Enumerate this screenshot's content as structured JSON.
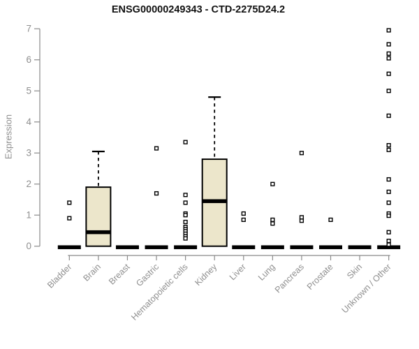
{
  "chart_data": {
    "type": "boxplot",
    "title": "ENSG00000249343 - CTD-2275D24.2",
    "ylabel": "Expression",
    "xlabel": "",
    "ylim": [
      0,
      7
    ],
    "yticks": [
      0,
      1,
      2,
      3,
      4,
      5,
      6,
      7
    ],
    "grid": "off",
    "legend": "none",
    "categories": [
      "Bladder",
      "Brain",
      "Breast",
      "Gastric",
      "Hematopoietic cells",
      "Kidney",
      "Liver",
      "Lung",
      "Pancreas",
      "Prostate",
      "Skin",
      "Unknown / Other"
    ],
    "series": [
      {
        "category": "Bladder",
        "q1": 0,
        "median": 0,
        "q3": 0,
        "whisker_low": 0,
        "whisker_high": 0,
        "outliers": [
          1.4,
          0.9
        ]
      },
      {
        "category": "Brain",
        "q1": 0,
        "median": 0.45,
        "q3": 1.9,
        "whisker_low": 0,
        "whisker_high": 3.05,
        "outliers": []
      },
      {
        "category": "Breast",
        "q1": 0,
        "median": 0,
        "q3": 0,
        "whisker_low": 0,
        "whisker_high": 0,
        "outliers": []
      },
      {
        "category": "Gastric",
        "q1": 0,
        "median": 0,
        "q3": 0,
        "whisker_low": 0,
        "whisker_high": 0,
        "outliers": [
          3.15,
          1.7
        ]
      },
      {
        "category": "Hematopoietic cells",
        "q1": 0,
        "median": 0,
        "q3": 0,
        "whisker_low": 0,
        "whisker_high": 0,
        "outliers": [
          3.35,
          1.65,
          1.4,
          1.05,
          1.0,
          0.78,
          0.62,
          0.55,
          0.48,
          0.4,
          0.32,
          0.25
        ]
      },
      {
        "category": "Kidney",
        "q1": 0,
        "median": 1.45,
        "q3": 2.8,
        "whisker_low": 0,
        "whisker_high": 4.8,
        "outliers": []
      },
      {
        "category": "Liver",
        "q1": 0,
        "median": 0,
        "q3": 0,
        "whisker_low": 0,
        "whisker_high": 0,
        "outliers": [
          1.05,
          0.85
        ]
      },
      {
        "category": "Lung",
        "q1": 0,
        "median": 0,
        "q3": 0,
        "whisker_low": 0,
        "whisker_high": 0,
        "outliers": [
          2.0,
          0.85,
          0.73
        ]
      },
      {
        "category": "Pancreas",
        "q1": 0,
        "median": 0,
        "q3": 0,
        "whisker_low": 0,
        "whisker_high": 0,
        "outliers": [
          3.0,
          0.93,
          0.82
        ]
      },
      {
        "category": "Prostate",
        "q1": 0,
        "median": 0,
        "q3": 0,
        "whisker_low": 0,
        "whisker_high": 0,
        "outliers": [
          0.85
        ]
      },
      {
        "category": "Skin",
        "q1": 0,
        "median": 0,
        "q3": 0,
        "whisker_low": 0,
        "whisker_high": 0,
        "outliers": []
      },
      {
        "category": "Unknown / Other",
        "q1": 0,
        "median": 0,
        "q3": 0,
        "whisker_low": 0,
        "whisker_high": 0,
        "outliers": [
          6.95,
          6.5,
          6.2,
          6.05,
          5.55,
          5.0,
          4.2,
          3.25,
          3.1,
          2.15,
          1.75,
          1.4,
          1.05,
          0.98,
          0.45,
          0.17,
          0.05
        ]
      }
    ],
    "style": {
      "box_fill": "#ECE6CB",
      "box_stroke": "#000000",
      "median_color": "#000000",
      "whisker_color": "#000000",
      "outlier_marker": "open-square",
      "outlier_color": "#000000",
      "axis_color": "#8a8a8a",
      "tick_text_color": "#8f8f8f",
      "title_color": "#111111",
      "background": "#ffffff"
    }
  }
}
